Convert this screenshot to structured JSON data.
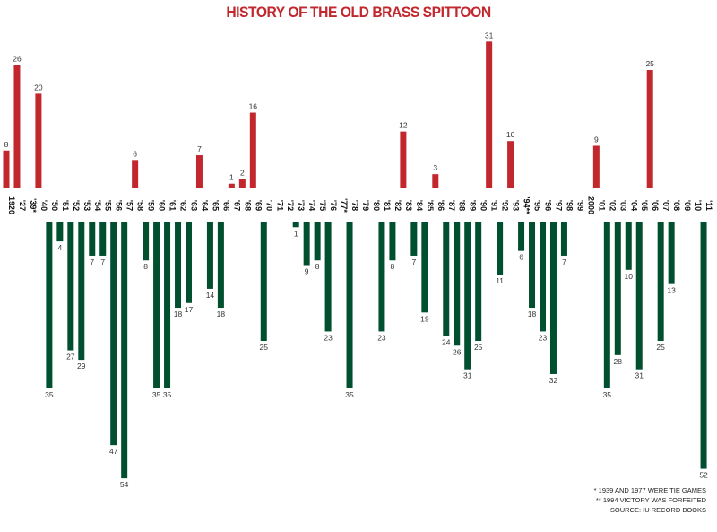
{
  "chart_data": {
    "type": "bar",
    "title": "HISTORY OF THE OLD BRASS SPITTOON",
    "categories": [
      "1920",
      "'27",
      "'39*",
      "'40",
      "'50",
      "'51",
      "'52",
      "'53",
      "'54",
      "'55",
      "'56",
      "'57",
      "'58",
      "'59",
      "'60",
      "'61",
      "'62",
      "'63",
      "'64",
      "'65",
      "'66",
      "'67",
      "'68",
      "'69",
      "'70",
      "'71",
      "'72",
      "'73",
      "'74",
      "'75",
      "'76",
      "'77*",
      "'78",
      "'79",
      "'80",
      "'81",
      "'82",
      "'83",
      "'84",
      "'85",
      "'86",
      "'87",
      "'88",
      "'89",
      "'90",
      "'91",
      "'92",
      "'93",
      "'94**",
      "'95",
      "'96",
      "'97",
      "'98",
      "'99",
      "2000",
      "'01",
      "'02",
      "'03",
      "'04",
      "'05",
      "'06",
      "'07",
      "'08",
      "'09",
      "'10",
      "'11"
    ],
    "series": [
      {
        "name": "red",
        "color": "#c1272d",
        "values": [
          8,
          26,
          null,
          20,
          null,
          null,
          null,
          null,
          null,
          null,
          null,
          null,
          6,
          null,
          null,
          null,
          null,
          null,
          7,
          null,
          null,
          1,
          2,
          16,
          null,
          null,
          null,
          null,
          null,
          null,
          null,
          null,
          null,
          null,
          null,
          null,
          null,
          12,
          null,
          null,
          3,
          null,
          null,
          null,
          null,
          31,
          null,
          10,
          null,
          null,
          null,
          null,
          null,
          null,
          null,
          9,
          null,
          null,
          null,
          null,
          25,
          null,
          null,
          null,
          null,
          null
        ]
      },
      {
        "name": "green",
        "color": "#00502f",
        "values": [
          null,
          null,
          null,
          null,
          35,
          4,
          27,
          29,
          7,
          7,
          47,
          54,
          null,
          8,
          35,
          35,
          18,
          17,
          null,
          14,
          18,
          null,
          null,
          null,
          25,
          null,
          null,
          1,
          9,
          8,
          23,
          null,
          35,
          null,
          null,
          23,
          8,
          null,
          7,
          19,
          null,
          24,
          26,
          31,
          25,
          null,
          11,
          null,
          6,
          18,
          23,
          32,
          7,
          null,
          null,
          null,
          35,
          28,
          10,
          31,
          null,
          25,
          13,
          null,
          null,
          52
        ]
      }
    ],
    "notes": [
      "* 1939 AND 1977 WERE TIE GAMES",
      "** 1994 VICTORY WAS FORFEITED",
      "SOURCE: IU RECORD BOOKS"
    ],
    "xlabel": "",
    "ylabel": "",
    "grid": false
  }
}
